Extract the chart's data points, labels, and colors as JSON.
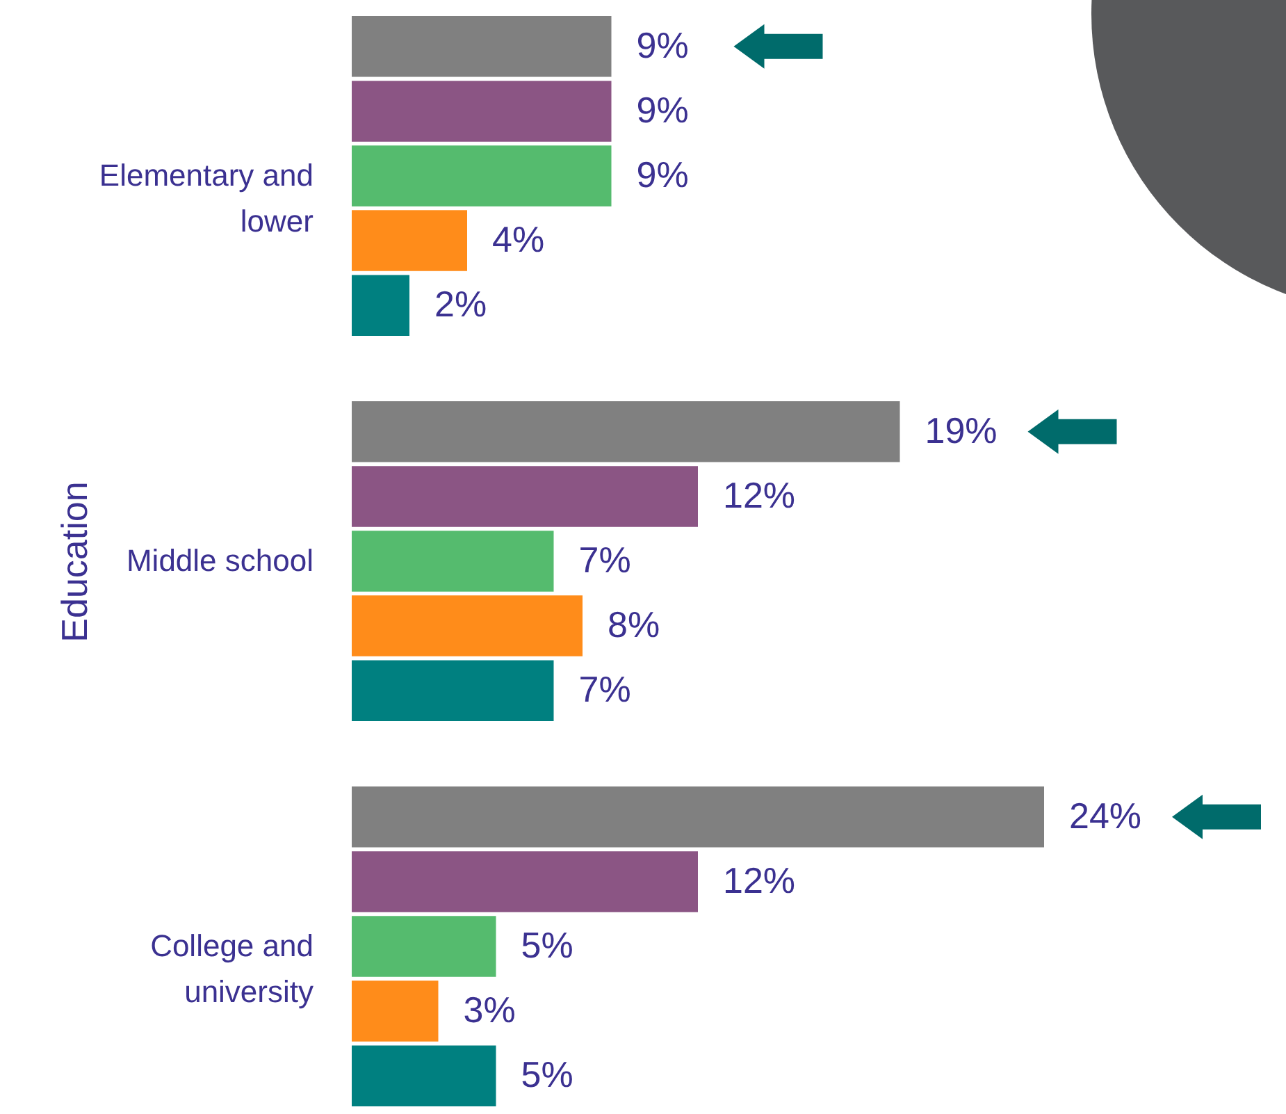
{
  "chart_data": {
    "type": "bar",
    "orientation": "horizontal",
    "ylabel": "Education",
    "categories": [
      "Elementary and lower",
      "Middle school",
      "College and university"
    ],
    "series": [
      {
        "color": "#808080",
        "values": [
          9,
          19,
          24
        ],
        "value_labels": [
          "9%",
          "19%",
          "24%"
        ]
      },
      {
        "color": "#8b5584",
        "values": [
          9,
          12,
          12
        ],
        "value_labels": [
          "9%",
          "12%",
          "12%"
        ]
      },
      {
        "color": "#55bb6e",
        "values": [
          9,
          7,
          5
        ],
        "value_labels": [
          "9%",
          "7%",
          "5%"
        ]
      },
      {
        "color": "#ff8c1a",
        "values": [
          4,
          8,
          3
        ],
        "value_labels": [
          "4%",
          "8%",
          "3%"
        ]
      },
      {
        "color": "#008080",
        "values": [
          2,
          7,
          5
        ],
        "value_labels": [
          "2%",
          "7%",
          "5%"
        ]
      }
    ]
  }
}
